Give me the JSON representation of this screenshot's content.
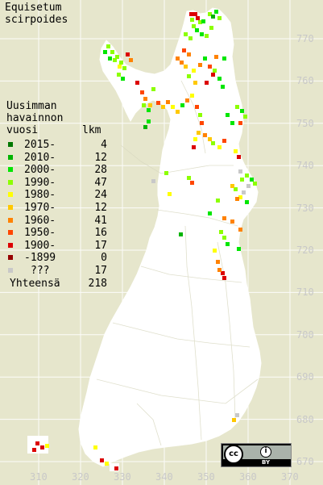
{
  "title_lines": [
    "Equisetum",
    "scirpoides"
  ],
  "legend": {
    "header_lines": [
      "Uusimman",
      "havainnon",
      "vuosi"
    ],
    "count_header": "lkm",
    "rows": [
      {
        "label": "2015-",
        "count": "4",
        "color": "#007800"
      },
      {
        "label": "2010-",
        "count": "12",
        "color": "#00b400"
      },
      {
        "label": "2000-",
        "count": "28",
        "color": "#00e600"
      },
      {
        "label": "1990-",
        "count": "47",
        "color": "#8cff00"
      },
      {
        "label": "1980-",
        "count": "24",
        "color": "#ffff00"
      },
      {
        "label": "1970-",
        "count": "12",
        "color": "#ffc800"
      },
      {
        "label": "1960-",
        "count": "41",
        "color": "#ff8200"
      },
      {
        "label": "1950-",
        "count": "16",
        "color": "#ff4600"
      },
      {
        "label": "1900-",
        "count": "17",
        "color": "#dc0000"
      },
      {
        "label": "-1899",
        "count": "0",
        "color": "#960000"
      },
      {
        "label": "???",
        "count": "17",
        "color": "#c8c8c8"
      }
    ],
    "total_label": "Yhteensä",
    "total_count": "218"
  },
  "y_ticks": [
    "770",
    "760",
    "750",
    "740",
    "730",
    "720",
    "710",
    "700",
    "690",
    "680",
    "670"
  ],
  "x_ticks": [
    "310",
    "320",
    "330",
    "340",
    "350",
    "360",
    "370"
  ],
  "license": {
    "cc": "cc",
    "by": "BY"
  }
}
